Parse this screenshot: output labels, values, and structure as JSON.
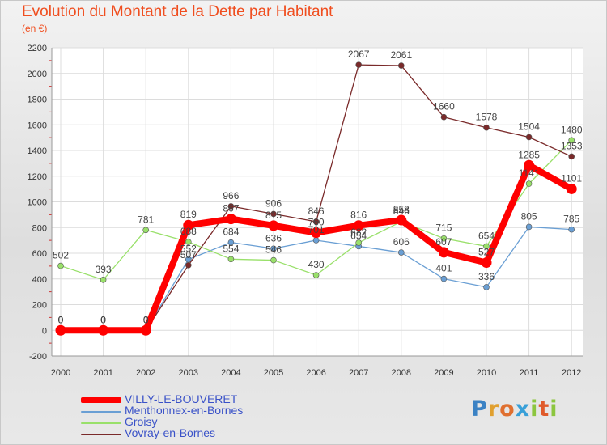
{
  "chart_data": {
    "type": "line",
    "title": "Evolution du Montant de la Dette par Habitant",
    "subtitle": "(en €)",
    "x": [
      "2000",
      "2001",
      "2002",
      "2003",
      "2004",
      "2005",
      "2006",
      "2007",
      "2008",
      "2009",
      "2010",
      "2011",
      "2012"
    ],
    "ylim": [
      -200,
      2200
    ],
    "yticks": [
      -200,
      0,
      200,
      400,
      600,
      800,
      1000,
      1200,
      1400,
      1600,
      1800,
      2000,
      2200
    ],
    "grid": true,
    "legend_position": "bottom-left",
    "series": [
      {
        "name": "VILLY-LE-BOUVERET",
        "color": "#ff0000",
        "values": [
          0,
          0,
          0,
          819,
          867,
          815,
          760,
          816,
          858,
          607,
          527,
          1285,
          1101
        ],
        "labels": [
          "0",
          "0",
          "0",
          "819",
          "867",
          "815",
          "760",
          "816",
          "858",
          "607",
          "527",
          "1285",
          "1101"
        ]
      },
      {
        "name": "Menthonnex-en-Bornes",
        "color": "#6a9fd4",
        "values": [
          0,
          0,
          0,
          552,
          684,
          636,
          701,
          654,
          606,
          401,
          336,
          805,
          785
        ],
        "labels": [
          "0",
          "0",
          "0",
          "552",
          "684",
          "636",
          "701",
          "654",
          "606",
          "401",
          "336",
          "805",
          "785"
        ]
      },
      {
        "name": "Groisy",
        "color": "#99e06a",
        "values": [
          502,
          393,
          781,
          688,
          554,
          546,
          430,
          682,
          846,
          715,
          654,
          1141,
          1480
        ],
        "labels": [
          "502",
          "393",
          "781",
          "688",
          "554",
          "546",
          "430",
          "682",
          "846",
          "715",
          "654",
          "1141",
          "1480"
        ]
      },
      {
        "name": "Vovray-en-Bornes",
        "color": "#7a2a2a",
        "values": [
          0,
          0,
          0,
          507,
          966,
          906,
          846,
          2067,
          2061,
          1660,
          1578,
          1504,
          1353
        ],
        "labels": [
          "0",
          "0",
          "0",
          "507",
          "966",
          "906",
          "846",
          "2067",
          "2061",
          "1660",
          "1578",
          "1504",
          "1353"
        ]
      }
    ]
  },
  "logo": {
    "letters": [
      "P",
      "r",
      "o",
      "x",
      "i",
      "t",
      "i"
    ],
    "colors": [
      "#3b82c4",
      "#e0a030",
      "#e07030",
      "#39a0d8",
      "#8cc63f",
      "#e05a2a",
      "#8cc63f"
    ]
  }
}
